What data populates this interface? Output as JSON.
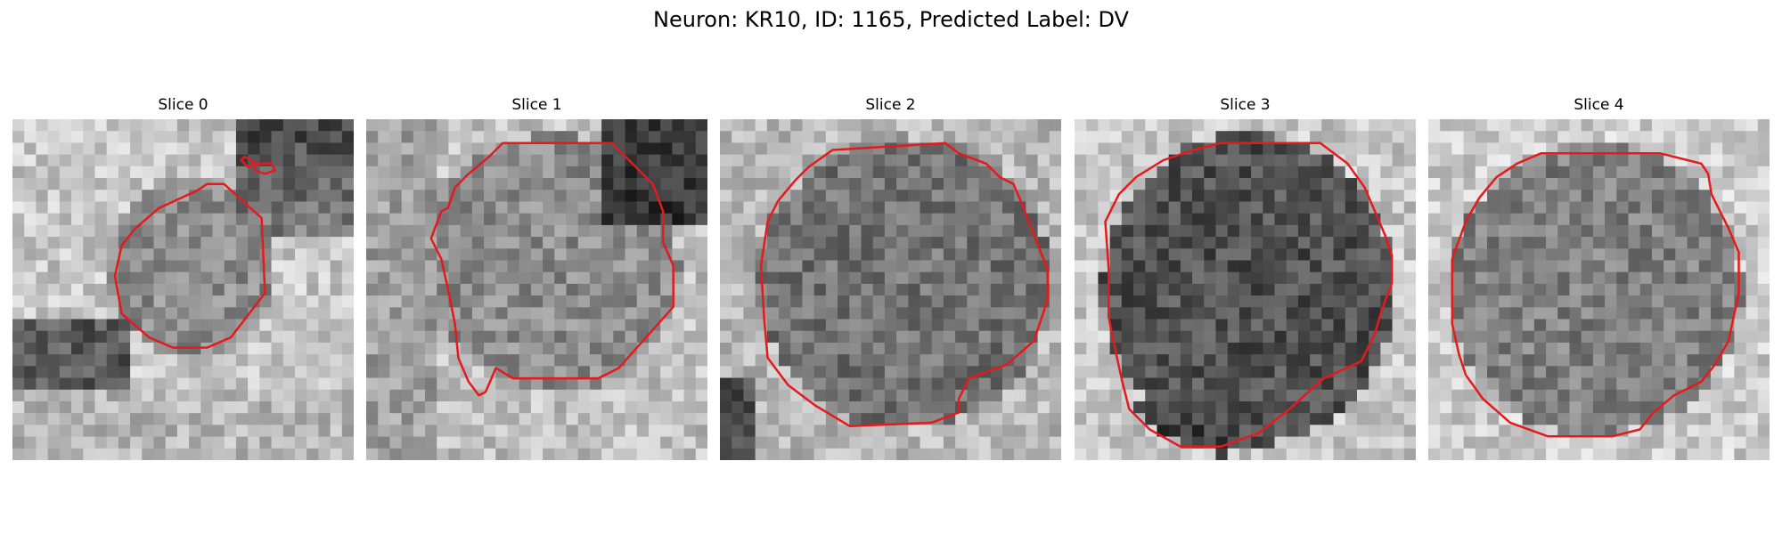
{
  "figure": {
    "title": "Neuron: KR10, ID: 1165, Predicted Label: DV"
  },
  "panels": [
    {
      "title": "Slice 0",
      "contour": [
        [
          0.62,
          0.19
        ],
        [
          0.73,
          0.29
        ],
        [
          0.74,
          0.51
        ],
        [
          0.64,
          0.64
        ],
        [
          0.57,
          0.67
        ],
        [
          0.47,
          0.67
        ],
        [
          0.4,
          0.64
        ],
        [
          0.32,
          0.57
        ],
        [
          0.3,
          0.46
        ],
        [
          0.32,
          0.37
        ],
        [
          0.36,
          0.32
        ],
        [
          0.43,
          0.26
        ],
        [
          0.54,
          0.21
        ],
        [
          0.57,
          0.19
        ]
      ],
      "extra": [
        [
          [
            0.68,
            0.11
          ],
          [
            0.7,
            0.12
          ],
          [
            0.71,
            0.13
          ],
          [
            0.69,
            0.14
          ],
          [
            0.67,
            0.12
          ]
        ],
        [
          [
            0.71,
            0.13
          ],
          [
            0.76,
            0.13
          ],
          [
            0.77,
            0.15
          ],
          [
            0.74,
            0.16
          ],
          [
            0.71,
            0.15
          ]
        ]
      ]
    },
    {
      "title": "Slice 1",
      "contour": [
        [
          0.4,
          0.07
        ],
        [
          0.72,
          0.07
        ],
        [
          0.84,
          0.19
        ],
        [
          0.87,
          0.27
        ],
        [
          0.87,
          0.36
        ],
        [
          0.9,
          0.43
        ],
        [
          0.9,
          0.55
        ],
        [
          0.74,
          0.73
        ],
        [
          0.68,
          0.76
        ],
        [
          0.43,
          0.76
        ],
        [
          0.38,
          0.73
        ],
        [
          0.35,
          0.8
        ],
        [
          0.33,
          0.81
        ],
        [
          0.3,
          0.77
        ],
        [
          0.27,
          0.7
        ],
        [
          0.26,
          0.6
        ],
        [
          0.24,
          0.5
        ],
        [
          0.22,
          0.41
        ],
        [
          0.19,
          0.35
        ],
        [
          0.22,
          0.27
        ],
        [
          0.24,
          0.26
        ],
        [
          0.26,
          0.2
        ],
        [
          0.3,
          0.16
        ],
        [
          0.36,
          0.11
        ]
      ],
      "extra": []
    },
    {
      "title": "Slice 2",
      "contour": [
        [
          0.33,
          0.09
        ],
        [
          0.66,
          0.07
        ],
        [
          0.7,
          0.1
        ],
        [
          0.78,
          0.13
        ],
        [
          0.82,
          0.17
        ],
        [
          0.86,
          0.19
        ],
        [
          0.89,
          0.26
        ],
        [
          0.92,
          0.34
        ],
        [
          0.96,
          0.44
        ],
        [
          0.96,
          0.53
        ],
        [
          0.92,
          0.65
        ],
        [
          0.84,
          0.72
        ],
        [
          0.73,
          0.76
        ],
        [
          0.7,
          0.82
        ],
        [
          0.7,
          0.86
        ],
        [
          0.62,
          0.89
        ],
        [
          0.38,
          0.9
        ],
        [
          0.28,
          0.84
        ],
        [
          0.2,
          0.78
        ],
        [
          0.14,
          0.7
        ],
        [
          0.13,
          0.59
        ],
        [
          0.12,
          0.43
        ],
        [
          0.14,
          0.3
        ],
        [
          0.17,
          0.24
        ],
        [
          0.22,
          0.18
        ],
        [
          0.26,
          0.14
        ]
      ],
      "extra": []
    },
    {
      "title": "Slice 3",
      "contour": [
        [
          0.43,
          0.07
        ],
        [
          0.72,
          0.07
        ],
        [
          0.8,
          0.13
        ],
        [
          0.85,
          0.2
        ],
        [
          0.88,
          0.27
        ],
        [
          0.91,
          0.34
        ],
        [
          0.93,
          0.4
        ],
        [
          0.93,
          0.48
        ],
        [
          0.9,
          0.56
        ],
        [
          0.88,
          0.63
        ],
        [
          0.84,
          0.71
        ],
        [
          0.73,
          0.76
        ],
        [
          0.63,
          0.85
        ],
        [
          0.54,
          0.92
        ],
        [
          0.43,
          0.96
        ],
        [
          0.31,
          0.96
        ],
        [
          0.22,
          0.91
        ],
        [
          0.16,
          0.85
        ],
        [
          0.14,
          0.77
        ],
        [
          0.12,
          0.68
        ],
        [
          0.1,
          0.58
        ],
        [
          0.1,
          0.44
        ],
        [
          0.09,
          0.3
        ],
        [
          0.13,
          0.22
        ],
        [
          0.18,
          0.17
        ],
        [
          0.26,
          0.12
        ],
        [
          0.35,
          0.09
        ]
      ],
      "extra": []
    },
    {
      "title": "Slice 4",
      "contour": [
        [
          0.33,
          0.1
        ],
        [
          0.68,
          0.1
        ],
        [
          0.8,
          0.13
        ],
        [
          0.82,
          0.16
        ],
        [
          0.83,
          0.22
        ],
        [
          0.88,
          0.32
        ],
        [
          0.91,
          0.39
        ],
        [
          0.91,
          0.51
        ],
        [
          0.88,
          0.65
        ],
        [
          0.84,
          0.72
        ],
        [
          0.8,
          0.77
        ],
        [
          0.72,
          0.81
        ],
        [
          0.66,
          0.86
        ],
        [
          0.62,
          0.91
        ],
        [
          0.54,
          0.93
        ],
        [
          0.35,
          0.93
        ],
        [
          0.24,
          0.89
        ],
        [
          0.16,
          0.82
        ],
        [
          0.11,
          0.75
        ],
        [
          0.09,
          0.69
        ],
        [
          0.07,
          0.6
        ],
        [
          0.07,
          0.41
        ],
        [
          0.11,
          0.3
        ],
        [
          0.15,
          0.23
        ],
        [
          0.2,
          0.17
        ],
        [
          0.26,
          0.13
        ]
      ],
      "extra": []
    }
  ],
  "colors": {
    "contour": "#e41a1c"
  }
}
